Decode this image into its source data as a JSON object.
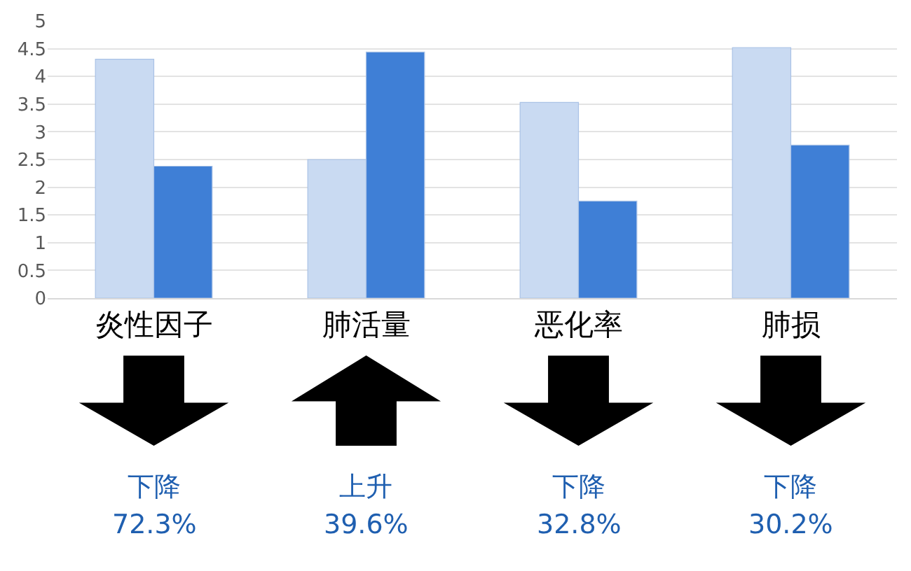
{
  "chart_data": {
    "type": "bar",
    "categories": [
      "炎性因子",
      "肺活量",
      "恶化率",
      "肺损"
    ],
    "series": [
      {
        "color": "#c9daf2",
        "values": [
          4.31,
          2.5,
          3.53,
          4.52
        ]
      },
      {
        "color": "#3f7fd6",
        "values": [
          2.38,
          4.44,
          1.75,
          2.76
        ]
      }
    ],
    "ylim": [
      0,
      5
    ],
    "yticks": [
      0,
      0.5,
      1,
      1.5,
      2,
      2.5,
      3,
      3.5,
      4,
      4.5,
      5
    ],
    "grid": "y",
    "annotations": [
      "下降\n72.3%",
      "上升\n39.6%",
      "下降\n32.8%",
      "下降\n30.2%"
    ]
  }
}
